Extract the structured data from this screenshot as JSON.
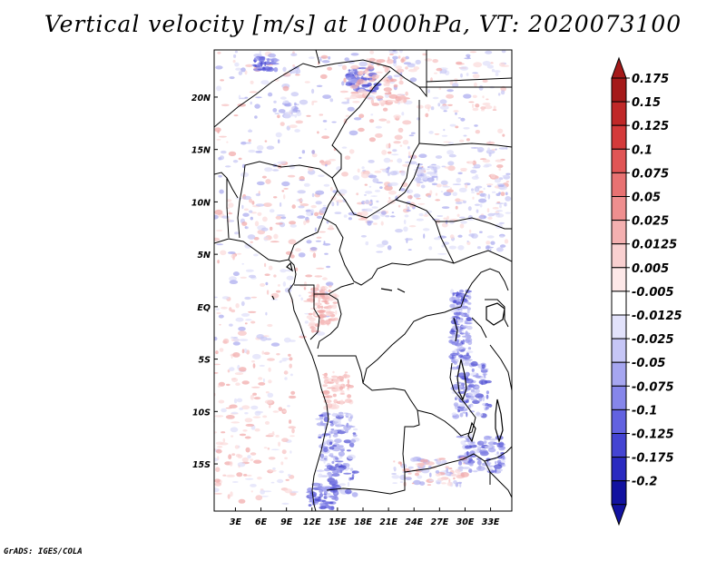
{
  "title": "Vertical velocity [m/s] at 1000hPa, VT: 2020073100",
  "credit": "GrADS: IGES/COLA",
  "map": {
    "lat_labels": [
      "20N",
      "15N",
      "10N",
      "5N",
      "EQ",
      "5S",
      "10S",
      "15S"
    ],
    "lon_labels": [
      "3E",
      "6E",
      "9E",
      "12E",
      "15E",
      "18E",
      "21E",
      "24E",
      "27E",
      "30E",
      "33E"
    ],
    "lat_values": [
      20,
      15,
      10,
      5,
      0,
      -5,
      -10,
      -15
    ],
    "lon_values": [
      3,
      6,
      9,
      12,
      15,
      18,
      21,
      24,
      27,
      30,
      33
    ],
    "extent": {
      "lon_min": 0.5,
      "lon_max": 35.5,
      "lat_min": -19.5,
      "lat_max": 24.5
    }
  },
  "colorbar": {
    "levels": [
      "0.175",
      "0.15",
      "0.125",
      "0.1",
      "0.075",
      "0.05",
      "0.025",
      "0.0125",
      "0.005",
      "-0.005",
      "-0.0125",
      "-0.025",
      "-0.05",
      "-0.075",
      "-0.1",
      "-0.125",
      "-0.175",
      "-0.2"
    ],
    "colors": [
      "#a51a1a",
      "#c02828",
      "#d43a3a",
      "#e05555",
      "#e87272",
      "#ef8f8f",
      "#f4b0b0",
      "#f9d0d0",
      "#fde8e8",
      "#ffffff",
      "#e2e2fb",
      "#c6c6f6",
      "#a6a6f0",
      "#8686ea",
      "#6262e0",
      "#4444d2",
      "#2a2ac0",
      "#1212a0"
    ]
  },
  "legend_extremes": {
    "top_color": "#a51a1a",
    "bottom_color": "#1212a0"
  }
}
